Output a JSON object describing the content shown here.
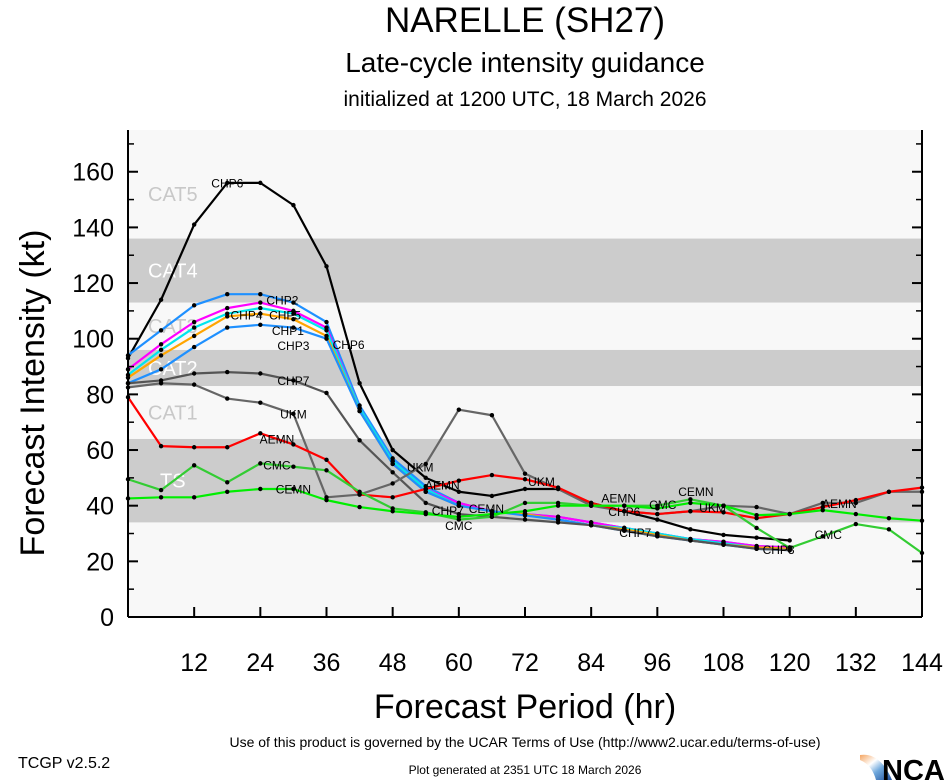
{
  "header": {
    "title": "NARELLE (SH27)",
    "subtitle": "Late-cycle intensity guidance",
    "init_line": "initialized at 1200 UTC, 18 March 2026"
  },
  "footer": {
    "version": "TCGP v2.5.2",
    "terms": "Use of this product is governed by the UCAR Terms of Use (http://www2.ucar.edu/terms-of-use)",
    "generated": "Plot generated at 2351 UTC   18 March 2026",
    "logo_text": "NCAR"
  },
  "chart_data": {
    "type": "line",
    "title": "NARELLE (SH27)",
    "xlabel": "Forecast Period (hr)",
    "ylabel": "Forecast Intensity (kt)",
    "xlim": [
      0,
      144
    ],
    "ylim": [
      0,
      175
    ],
    "xticks": [
      12,
      24,
      36,
      48,
      60,
      72,
      84,
      96,
      108,
      120,
      132,
      144
    ],
    "yticks": [
      0,
      20,
      40,
      60,
      80,
      100,
      120,
      140,
      160
    ],
    "bands": [
      {
        "label": "TS",
        "from": 34,
        "to": 64,
        "color": "#cccccc"
      },
      {
        "label": "CAT1",
        "from": 64,
        "to": 83,
        "color": "#f8f8f8"
      },
      {
        "label": "CAT2",
        "from": 83,
        "to": 96,
        "color": "#cccccc"
      },
      {
        "label": "CAT3",
        "from": 96,
        "to": 113,
        "color": "#f8f8f8"
      },
      {
        "label": "CAT4",
        "from": 113,
        "to": 136,
        "color": "#cccccc"
      },
      {
        "label": "CAT5",
        "from": 136,
        "to": 175,
        "color": "#f8f8f8"
      }
    ],
    "series": [
      {
        "name": "CHP6",
        "color": "#000000",
        "x_step": 6,
        "values": [
          93,
          114,
          141,
          156,
          156,
          148,
          126,
          84,
          60,
          50,
          45,
          43.5,
          46,
          46,
          41,
          38,
          35,
          31.5,
          29.5,
          28.5,
          27.5
        ],
        "labels_at": [
          16,
          40,
          90
        ]
      },
      {
        "name": "CHP2",
        "color": "#1e90ff",
        "x_step": 6,
        "values": [
          94,
          103,
          112,
          116,
          116,
          113,
          106,
          76,
          57,
          47,
          41,
          38,
          37,
          36,
          34,
          32,
          30,
          28,
          27,
          25.5,
          25
        ],
        "labels_at": [
          28
        ]
      },
      {
        "name": "CHP5",
        "color": "#ff00ff",
        "x_step": 6,
        "values": [
          89,
          98,
          106,
          111,
          113,
          110,
          104,
          75,
          56,
          46,
          41,
          38,
          37,
          36,
          34,
          32,
          30,
          28,
          27,
          25.5,
          25
        ],
        "labels_at": [
          28.5
        ]
      },
      {
        "name": "CHP1",
        "color": "#00e5ee",
        "x_step": 6,
        "values": [
          87,
          96,
          104,
          109,
          111,
          109,
          103,
          75,
          56,
          46,
          40,
          38,
          37,
          35,
          33,
          32,
          30,
          28,
          26.5,
          25,
          24.5
        ],
        "labels_at": [
          29
        ]
      },
      {
        "name": "CHP4",
        "color": "#ffa500",
        "x_step": 6,
        "values": [
          86,
          94,
          101,
          108,
          109,
          107,
          101,
          74,
          55,
          45,
          40,
          38,
          37,
          35,
          33,
          31.5,
          29.5,
          27.5,
          26,
          25,
          24.5
        ],
        "labels_at": [
          29.5
        ]
      },
      {
        "name": "CHP3",
        "color": "#1e90ff",
        "x_step": 6,
        "values": [
          84,
          89,
          97,
          104,
          105,
          104,
          100,
          74,
          55,
          45,
          40,
          38,
          36.5,
          35,
          33,
          31,
          29,
          27.5,
          26,
          24.5,
          24
        ],
        "labels_at": [
          30,
          118
        ]
      },
      {
        "name": "CHP7",
        "color": "#555555",
        "x_step": 6,
        "values": [
          84,
          85,
          87.5,
          88,
          87.5,
          85,
          80.5,
          63.5,
          52,
          41,
          37,
          36,
          35,
          34,
          33,
          31,
          29,
          27.5,
          26,
          24.5,
          24
        ],
        "labels_at": [
          30,
          58,
          92
        ]
      },
      {
        "name": "UKM",
        "color": "#666666",
        "x_step": 6,
        "values": [
          82.5,
          84,
          83.5,
          78.5,
          77,
          73,
          43,
          44,
          48,
          55,
          74.5,
          72.5,
          51.5,
          46,
          40,
          38,
          37,
          38,
          40,
          39.5,
          37,
          41,
          41,
          45,
          45
        ],
        "labels_at": [
          30,
          53,
          75,
          106
        ]
      },
      {
        "name": "AEMN",
        "color": "#ff0000",
        "x_step": 6,
        "values": [
          79,
          61.4,
          61,
          61,
          66,
          62,
          56.5,
          44,
          43,
          46,
          49,
          51,
          49.5,
          46.5,
          41,
          38,
          37,
          38,
          37.6,
          35.5,
          37,
          39.5,
          42,
          45,
          46.5
        ],
        "labels_at": [
          27,
          57,
          91,
          129
        ]
      },
      {
        "name": "CMC",
        "color": "#33cc33",
        "x_step": 6,
        "values": [
          49.5,
          45.6,
          54.5,
          48.4,
          55.2,
          54,
          52.7,
          45,
          39,
          37.6,
          35,
          36,
          41,
          41,
          40,
          40,
          40,
          42.3,
          40,
          32,
          24.8,
          29,
          33.4,
          31.5,
          23
        ],
        "labels_at": [
          27,
          60,
          93,
          127
        ]
      },
      {
        "name": "CEMN",
        "color": "#00ee00",
        "x_step": 6,
        "values": [
          42.6,
          43,
          43,
          45,
          46,
          46,
          42,
          39.5,
          38,
          37,
          36,
          37,
          38,
          40,
          40,
          40,
          39,
          41,
          40,
          36.6,
          37,
          38.4,
          37,
          35.5,
          34.6
        ],
        "labels_at": [
          30,
          65,
          103
        ]
      }
    ]
  }
}
